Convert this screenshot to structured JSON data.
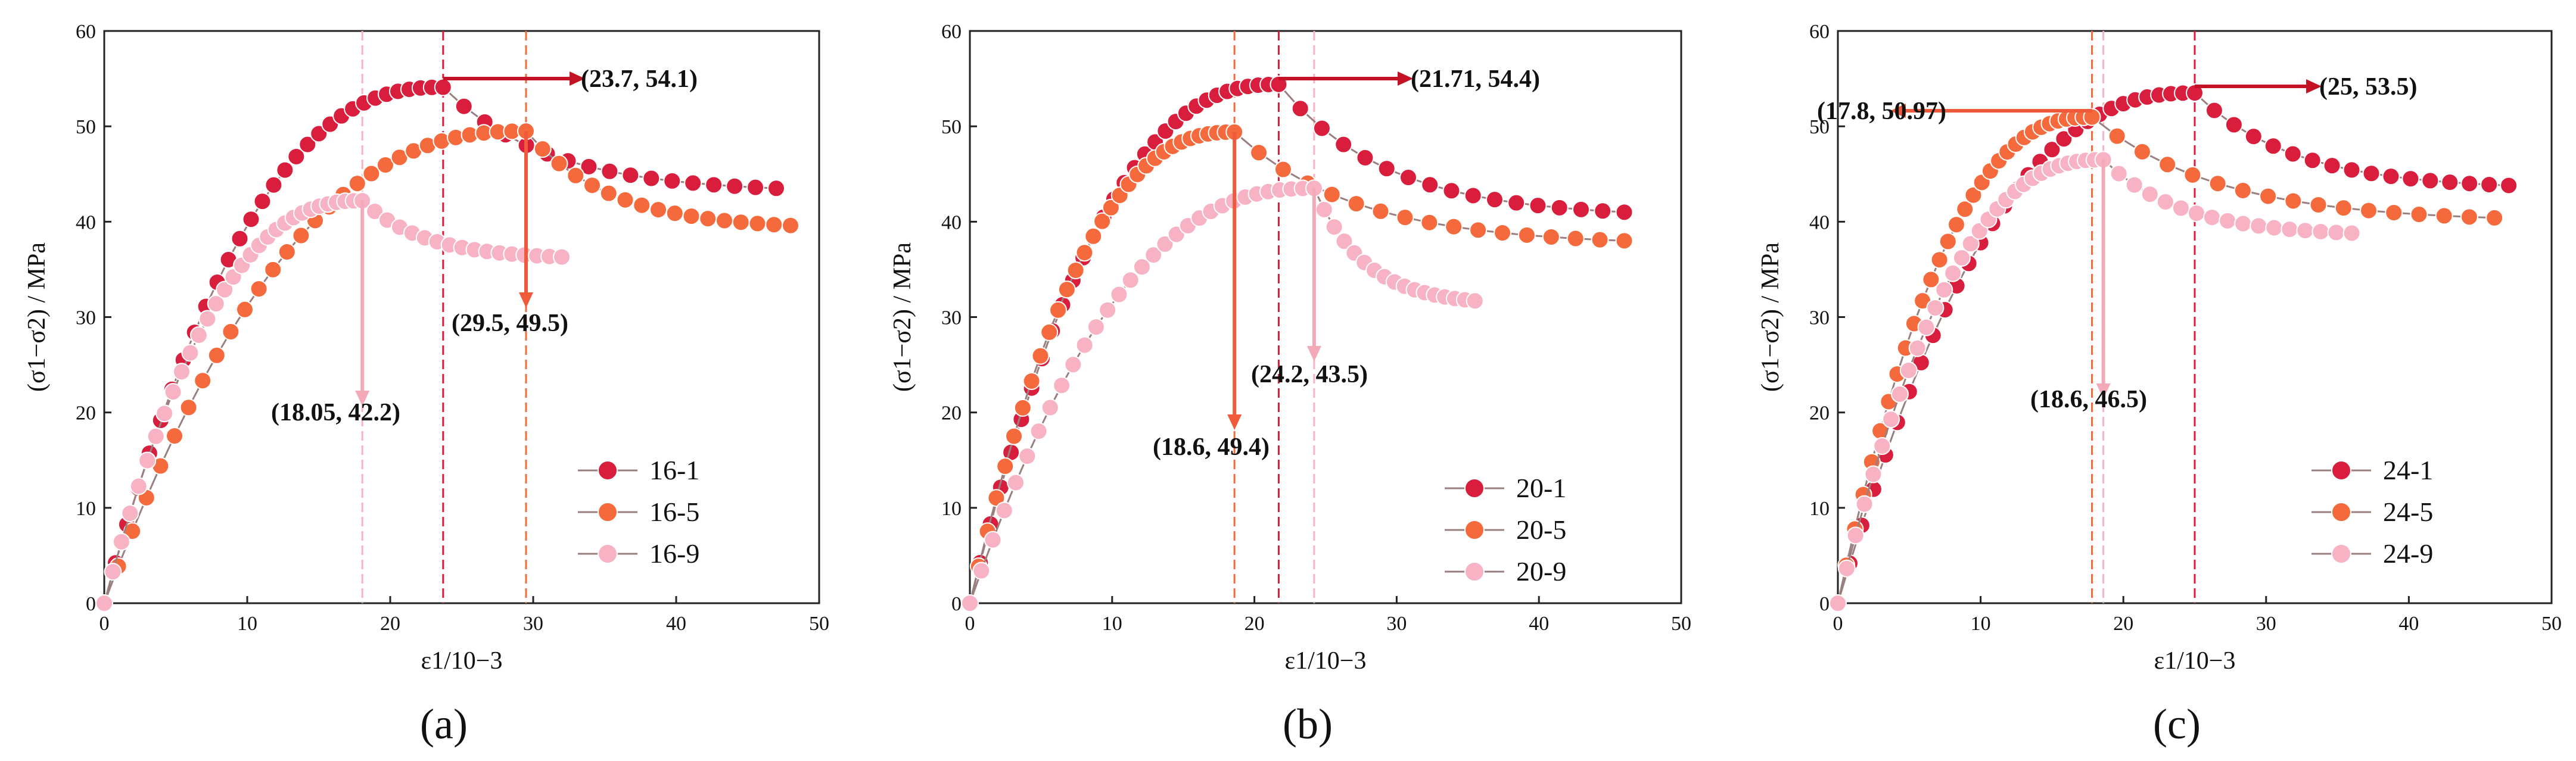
{
  "colors": {
    "s1": "#d81e3c",
    "s5": "#f56a3c",
    "s9": "#f7b3c3",
    "arrow_dark": "#c41225",
    "arrow_mid": "#f05a3a",
    "arrow_light": "#f4a9b8"
  },
  "chart_data": [
    {
      "type": "line",
      "panel_label": "(a)",
      "ylabel": "(σ1−σ2) / MPa",
      "xlabel": "ε1/10−3",
      "xlim": [
        0,
        50
      ],
      "ylim": [
        0,
        60
      ],
      "xticks": [
        0,
        10,
        20,
        30,
        40,
        50
      ],
      "yticks": [
        0,
        10,
        20,
        30,
        40,
        50,
        60
      ],
      "legend_position": "bottom-right",
      "series": [
        {
          "name": "16-1",
          "peak": [
            23.7,
            54.1
          ],
          "end": [
            47,
            43.5
          ],
          "drops": []
        },
        {
          "name": "16-5",
          "peak": [
            29.5,
            49.5
          ],
          "end": [
            48,
            39.6
          ],
          "drops": []
        },
        {
          "name": "16-9",
          "peak": [
            18.05,
            42.2
          ],
          "end": [
            32,
            36.3
          ],
          "drops": []
        }
      ],
      "annotations": [
        {
          "text": "(23.7, 54.1)",
          "x": 23.7,
          "y": 54.1,
          "series": 0
        },
        {
          "text": "(29.5, 49.5)",
          "x": 29.5,
          "y": 49.5,
          "series": 1
        },
        {
          "text": "(18.05, 42.2)",
          "x": 18.05,
          "y": 42.2,
          "series": 2
        }
      ]
    },
    {
      "type": "line",
      "panel_label": "(b)",
      "ylabel": "(σ1−σ2) / MPa",
      "xlabel": "ε1/10−3",
      "xlim": [
        0,
        50
      ],
      "ylim": [
        0,
        60
      ],
      "xticks": [
        0,
        10,
        20,
        30,
        40,
        50
      ],
      "yticks": [
        0,
        10,
        20,
        30,
        40,
        50,
        60
      ],
      "legend_position": "bottom-right",
      "series": [
        {
          "name": "20-1",
          "peak": [
            21.71,
            54.4
          ],
          "end": [
            46,
            41.0
          ],
          "drops": []
        },
        {
          "name": "20-5",
          "peak": [
            18.6,
            49.4
          ],
          "end": [
            46,
            38.0
          ],
          "drops": []
        },
        {
          "name": "20-9",
          "peak": [
            24.2,
            43.5
          ],
          "end": [
            35.5,
            31.7
          ],
          "drops": [
            [
              34.5,
              31.0
            ]
          ]
        }
      ],
      "annotations": [
        {
          "text": "(21.71, 54.4)",
          "x": 21.71,
          "y": 54.4,
          "series": 0
        },
        {
          "text": "(18.6, 49.4)",
          "x": 18.6,
          "y": 49.4,
          "series": 1
        },
        {
          "text": "(24.2, 43.5)",
          "x": 24.2,
          "y": 43.5,
          "series": 2
        }
      ]
    },
    {
      "type": "line",
      "panel_label": "(c)",
      "ylabel": "(σ1−σ2) / MPa",
      "xlabel": "ε1/10−3",
      "xlim": [
        0,
        50
      ],
      "ylim": [
        0,
        60
      ],
      "xticks": [
        0,
        10,
        20,
        30,
        40,
        50
      ],
      "yticks": [
        0,
        10,
        20,
        30,
        40,
        50,
        60
      ],
      "legend_position": "bottom-right",
      "series": [
        {
          "name": "24-1",
          "peak": [
            25,
            53.5
          ],
          "end": [
            47,
            43.8
          ],
          "drops": []
        },
        {
          "name": "24-5",
          "peak": [
            17.8,
            50.97
          ],
          "end": [
            46,
            40.4
          ],
          "drops": []
        },
        {
          "name": "24-9",
          "peak": [
            18.6,
            46.5
          ],
          "end": [
            36,
            38.8
          ],
          "drops": []
        }
      ],
      "annotations": [
        {
          "text": "(25, 53.5)",
          "x": 25,
          "y": 53.5,
          "series": 0
        },
        {
          "text": "(17.8, 50.97)",
          "x": 17.8,
          "y": 50.97,
          "series": 1
        },
        {
          "text": "(18.6, 46.5)",
          "x": 18.6,
          "y": 46.5,
          "series": 2
        }
      ]
    }
  ]
}
